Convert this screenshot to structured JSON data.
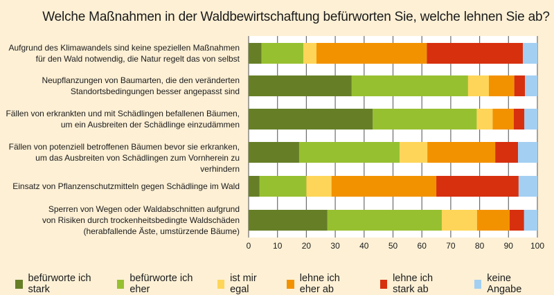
{
  "chart_data": {
    "type": "bar",
    "orientation": "horizontal",
    "stacked": true,
    "title": "Welche Maßnahmen in der Waldbewirtschaftung befürworten Sie, welche lehnen Sie ab?",
    "xlabel": "",
    "ylabel": "",
    "xlim": [
      0,
      100
    ],
    "xticks": [
      0,
      10,
      20,
      30,
      40,
      50,
      60,
      70,
      80,
      90,
      100
    ],
    "grid": true,
    "legend_position": "bottom",
    "categories": [
      "Aufgrund des Klimawandels sind keine speziellen Maßnahmen\nfür den Wald notwendig, die Natur regelt das von selbst",
      "Neupflanzungen von Baumarten, die den veränderten\nStandortsbedingungen besser angepasst sind",
      "Fällen von erkrankten und mit Schädlingen befallenen Bäumen,\num ein Ausbreiten der Schädlinge einzudämmen",
      "Fällen von potenziell betroffenen Bäumen bevor sie erkranken,\num das Ausbreiten von Schädlingen zum Vornherein zu verhindern",
      "Einsatz von Pflanzenschutzmitteln gegen Schädlinge im Wald",
      "Sperren von Wegen oder Waldabschnitten aufgrund\nvon Risiken durch trockenheitsbedingte Waldschäden\n(herabfallende Äste, umstürzende Bäume)"
    ],
    "series": [
      {
        "name": "befürworte ich stark",
        "color": "#667f27",
        "values": [
          4.5,
          35.7,
          43.0,
          17.5,
          3.8,
          27.3
        ]
      },
      {
        "name": "befürworte ich eher",
        "color": "#97c031",
        "values": [
          14.5,
          40.3,
          36.0,
          34.8,
          16.2,
          39.6
        ]
      },
      {
        "name": "ist mir egal",
        "color": "#fed558",
        "values": [
          4.5,
          7.2,
          5.5,
          9.6,
          8.7,
          12.2
        ]
      },
      {
        "name": "lehne ich eher ab",
        "color": "#f39200",
        "values": [
          38.2,
          8.8,
          7.3,
          23.5,
          36.3,
          11.3
        ]
      },
      {
        "name": "lehne ich stark ab",
        "color": "#d7300f",
        "values": [
          33.3,
          3.7,
          3.7,
          7.9,
          28.5,
          5.0
        ]
      },
      {
        "name": "keine Angabe",
        "color": "#a3cff2",
        "values": [
          5.0,
          4.3,
          4.5,
          6.7,
          6.5,
          4.6
        ]
      }
    ]
  }
}
